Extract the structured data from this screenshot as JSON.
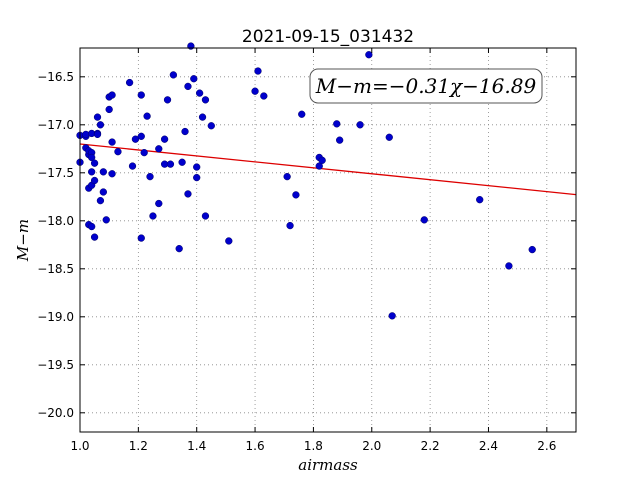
{
  "chart_data": {
    "type": "scatter",
    "title": "2021-09-15_031432",
    "xlabel": "airmass",
    "ylabel": "M−m",
    "xlim": [
      1.0,
      2.7
    ],
    "ylim": [
      -20.2,
      -16.2
    ],
    "x_ticks": [
      "1.0",
      "1.2",
      "1.4",
      "1.6",
      "1.8",
      "2.0",
      "2.2",
      "2.4",
      "2.6"
    ],
    "y_ticks": [
      "−16.5",
      "−17.0",
      "−17.5",
      "−18.0",
      "−18.5",
      "−19.0",
      "−19.5",
      "−20.0"
    ],
    "grid": true,
    "annotation": "M−m=−0.31χ−16.89",
    "fit_line": {
      "slope": -0.31,
      "intercept": -16.89,
      "color": "#dd0000"
    },
    "marker_color": "#0000cc",
    "points": [
      [
        1.0,
        -17.11
      ],
      [
        1.0,
        -17.39
      ],
      [
        1.02,
        -17.24
      ],
      [
        1.02,
        -17.12
      ],
      [
        1.02,
        -17.1
      ],
      [
        1.03,
        -17.31
      ],
      [
        1.03,
        -17.27
      ],
      [
        1.04,
        -17.29
      ],
      [
        1.04,
        -17.34
      ],
      [
        1.04,
        -17.09
      ],
      [
        1.03,
        -17.66
      ],
      [
        1.04,
        -17.63
      ],
      [
        1.04,
        -17.49
      ],
      [
        1.05,
        -17.4
      ],
      [
        1.05,
        -17.58
      ],
      [
        1.03,
        -18.04
      ],
      [
        1.04,
        -18.06
      ],
      [
        1.05,
        -18.17
      ],
      [
        1.06,
        -17.09
      ],
      [
        1.06,
        -17.1
      ],
      [
        1.06,
        -16.92
      ],
      [
        1.07,
        -17.0
      ],
      [
        1.07,
        -17.79
      ],
      [
        1.08,
        -17.49
      ],
      [
        1.08,
        -17.7
      ],
      [
        1.09,
        -17.99
      ],
      [
        1.1,
        -16.71
      ],
      [
        1.1,
        -16.84
      ],
      [
        1.11,
        -16.69
      ],
      [
        1.11,
        -17.18
      ],
      [
        1.11,
        -17.51
      ],
      [
        1.13,
        -17.28
      ],
      [
        1.17,
        -16.56
      ],
      [
        1.18,
        -17.43
      ],
      [
        1.19,
        -17.15
      ],
      [
        1.21,
        -16.69
      ],
      [
        1.21,
        -17.12
      ],
      [
        1.21,
        -18.18
      ],
      [
        1.22,
        -17.29
      ],
      [
        1.23,
        -16.91
      ],
      [
        1.24,
        -17.54
      ],
      [
        1.25,
        -17.95
      ],
      [
        1.27,
        -17.25
      ],
      [
        1.27,
        -17.82
      ],
      [
        1.29,
        -17.41
      ],
      [
        1.29,
        -17.15
      ],
      [
        1.3,
        -16.74
      ],
      [
        1.31,
        -17.41
      ],
      [
        1.32,
        -16.48
      ],
      [
        1.34,
        -18.29
      ],
      [
        1.35,
        -17.39
      ],
      [
        1.36,
        -17.07
      ],
      [
        1.37,
        -16.6
      ],
      [
        1.37,
        -17.72
      ],
      [
        1.38,
        -16.18
      ],
      [
        1.39,
        -16.52
      ],
      [
        1.4,
        -17.44
      ],
      [
        1.4,
        -17.55
      ],
      [
        1.41,
        -16.67
      ],
      [
        1.42,
        -16.92
      ],
      [
        1.43,
        -16.74
      ],
      [
        1.43,
        -17.95
      ],
      [
        1.45,
        -17.01
      ],
      [
        1.51,
        -18.21
      ],
      [
        1.6,
        -16.65
      ],
      [
        1.61,
        -16.44
      ],
      [
        1.63,
        -16.7
      ],
      [
        1.71,
        -17.54
      ],
      [
        1.72,
        -18.05
      ],
      [
        1.74,
        -17.73
      ],
      [
        1.76,
        -16.89
      ],
      [
        1.82,
        -17.34
      ],
      [
        1.82,
        -17.43
      ],
      [
        1.83,
        -17.37
      ],
      [
        1.88,
        -16.99
      ],
      [
        1.89,
        -17.16
      ],
      [
        1.96,
        -17.0
      ],
      [
        1.99,
        -16.27
      ],
      [
        2.06,
        -17.13
      ],
      [
        2.07,
        -18.99
      ],
      [
        2.18,
        -17.99
      ],
      [
        2.37,
        -17.78
      ],
      [
        2.47,
        -18.47
      ],
      [
        2.55,
        -18.3
      ]
    ]
  }
}
